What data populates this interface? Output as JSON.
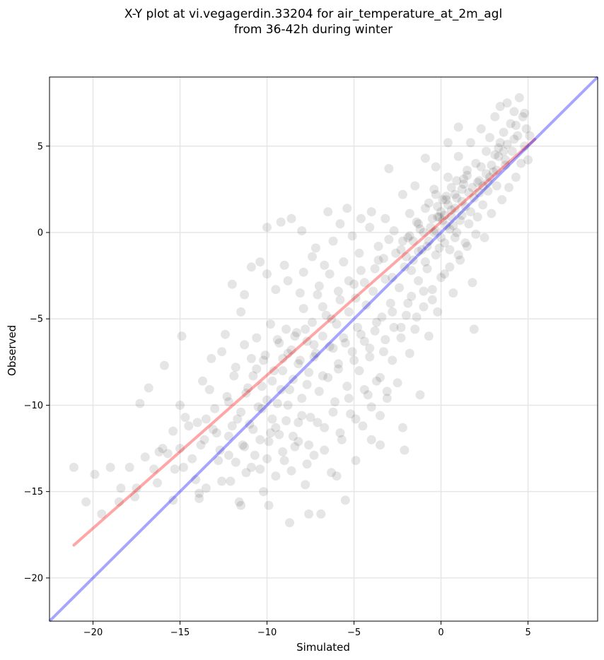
{
  "chart_data": {
    "type": "scatter",
    "title": "X-Y plot at vi.vegagerdin.33204 for air_temperature_at_2m_agl",
    "subtitle": "from 36-42h during winter",
    "xlabel": "Simulated",
    "ylabel": "Observed",
    "xlim": [
      -22.5,
      9.0
    ],
    "ylim": [
      -22.5,
      9.0
    ],
    "xticks": [
      -20,
      -15,
      -10,
      -5,
      0,
      5
    ],
    "yticks": [
      -20,
      -15,
      -10,
      -5,
      0,
      5
    ],
    "xtick_labels": [
      "−20",
      "−15",
      "−10",
      "−5",
      "0",
      "5"
    ],
    "ytick_labels": [
      "−20",
      "−15",
      "−10",
      "−5",
      "0",
      "5"
    ],
    "grid": true,
    "colors": {
      "points": "#000000",
      "regression": "#ff0000",
      "identity": "#0000ff",
      "grid": "#e6e6e6"
    },
    "regression_line": {
      "x": [
        -21.1,
        5.4
      ],
      "y": [
        -18.1,
        5.4
      ]
    },
    "identity_line": {
      "x": [
        -22.5,
        9.0
      ],
      "y": [
        -22.5,
        9.0
      ]
    },
    "points": [
      [
        -21.1,
        -13.6
      ],
      [
        -20.4,
        -15.6
      ],
      [
        -19.9,
        -14.0
      ],
      [
        -19.5,
        -16.3
      ],
      [
        -19.0,
        -13.6
      ],
      [
        -18.5,
        -15.6
      ],
      [
        -18.4,
        -14.8
      ],
      [
        -17.9,
        -13.6
      ],
      [
        -17.6,
        -15.3
      ],
      [
        -17.5,
        -14.8
      ],
      [
        -17.3,
        -9.9
      ],
      [
        -17.0,
        -13.0
      ],
      [
        -16.8,
        -9.0
      ],
      [
        -16.5,
        -13.7
      ],
      [
        -16.3,
        -14.5
      ],
      [
        -16.2,
        -12.7
      ],
      [
        -16.0,
        -12.5
      ],
      [
        -15.9,
        -7.7
      ],
      [
        -15.7,
        -12.8
      ],
      [
        -15.4,
        -15.5
      ],
      [
        -15.4,
        -11.5
      ],
      [
        -15.3,
        -13.7
      ],
      [
        -15.0,
        -12.5
      ],
      [
        -14.8,
        -13.6
      ],
      [
        -14.7,
        -10.7
      ],
      [
        -14.5,
        -11.2
      ],
      [
        -14.3,
        -13.1
      ],
      [
        -14.0,
        -11.0
      ],
      [
        -15.0,
        -10.0
      ],
      [
        -14.9,
        -6.0
      ],
      [
        -14.1,
        -14.3
      ],
      [
        -13.9,
        -15.1
      ],
      [
        -13.8,
        -12.3
      ],
      [
        -13.7,
        -8.6
      ],
      [
        -13.5,
        -14.8
      ],
      [
        -13.5,
        -10.8
      ],
      [
        -13.3,
        -9.1
      ],
      [
        -13.2,
        -7.3
      ],
      [
        -13.0,
        -10.2
      ],
      [
        -12.9,
        -11.6
      ],
      [
        -12.8,
        -13.2
      ],
      [
        -12.6,
        -6.9
      ],
      [
        -12.4,
        -5.9
      ],
      [
        -12.3,
        -9.5
      ],
      [
        -12.2,
        -12.9
      ],
      [
        -12.1,
        -14.4
      ],
      [
        -12.0,
        -11.2
      ],
      [
        -11.9,
        -8.3
      ],
      [
        -11.8,
        -7.8
      ],
      [
        -11.6,
        -15.6
      ],
      [
        -11.5,
        -10.4
      ],
      [
        -11.4,
        -12.3
      ],
      [
        -11.3,
        -6.5
      ],
      [
        -11.2,
        -13.9
      ],
      [
        -11.1,
        -9.0
      ],
      [
        -11.0,
        -11.1
      ],
      [
        -10.9,
        -7.3
      ],
      [
        -10.8,
        -8.3
      ],
      [
        -10.7,
        -12.9
      ],
      [
        -10.6,
        -6.1
      ],
      [
        -10.5,
        -10.1
      ],
      [
        -10.4,
        -13.7
      ],
      [
        -10.3,
        -8.9
      ],
      [
        -10.2,
        -15.0
      ],
      [
        -10.1,
        -7.1
      ],
      [
        -10.0,
        -9.7
      ],
      [
        -9.9,
        -12.1
      ],
      [
        -9.8,
        -5.3
      ],
      [
        -9.7,
        -10.8
      ],
      [
        -9.6,
        -8.0
      ],
      [
        -9.5,
        -14.1
      ],
      [
        -9.4,
        -6.2
      ],
      [
        -9.3,
        -11.7
      ],
      [
        -9.2,
        -9.1
      ],
      [
        -9.1,
        -7.3
      ],
      [
        -9.0,
        -13.2
      ],
      [
        -8.9,
        -5.6
      ],
      [
        -8.8,
        -10.0
      ],
      [
        -8.7,
        -16.8
      ],
      [
        -8.6,
        -6.8
      ],
      [
        -8.5,
        -8.5
      ],
      [
        -8.4,
        -12.4
      ],
      [
        -8.3,
        -5.8
      ],
      [
        -8.2,
        -11.0
      ],
      [
        -8.1,
        -7.4
      ],
      [
        -8.0,
        -9.6
      ],
      [
        -7.9,
        -4.4
      ],
      [
        -7.8,
        -14.6
      ],
      [
        -7.7,
        -6.3
      ],
      [
        -7.6,
        -8.1
      ],
      [
        -7.5,
        -10.7
      ],
      [
        -7.4,
        -5.2
      ],
      [
        -7.3,
        -12.9
      ],
      [
        -7.2,
        -7.0
      ],
      [
        -7.1,
        -3.6
      ],
      [
        -7.0,
        -9.2
      ],
      [
        -6.9,
        -16.3
      ],
      [
        -6.8,
        -6.0
      ],
      [
        -6.7,
        -11.3
      ],
      [
        -6.6,
        -4.8
      ],
      [
        -6.5,
        -8.4
      ],
      [
        -6.4,
        -2.4
      ],
      [
        -6.3,
        -13.9
      ],
      [
        -6.2,
        -6.7
      ],
      [
        -6.1,
        -9.8
      ],
      [
        -6.0,
        -5.3
      ],
      [
        -5.9,
        -7.6
      ],
      [
        -5.8,
        -3.9
      ],
      [
        -5.7,
        -12.0
      ],
      [
        -5.6,
        -6.1
      ],
      [
        -5.5,
        -15.5
      ],
      [
        -5.4,
        -8.9
      ],
      [
        -5.3,
        -4.6
      ],
      [
        -5.2,
        -10.5
      ],
      [
        -5.1,
        -6.9
      ],
      [
        -5.0,
        -3.0
      ],
      [
        -4.9,
        -13.2
      ],
      [
        -4.8,
        -5.5
      ],
      [
        -4.7,
        -8.0
      ],
      [
        -4.6,
        -2.2
      ],
      [
        -4.5,
        -11.2
      ],
      [
        -4.4,
        -6.3
      ],
      [
        -4.3,
        -4.2
      ],
      [
        -4.2,
        -9.4
      ],
      [
        -4.1,
        -7.2
      ],
      [
        -4.0,
        -12.0
      ],
      [
        -3.9,
        -3.4
      ],
      [
        -3.8,
        -5.7
      ],
      [
        -3.7,
        -8.6
      ],
      [
        -3.6,
        -1.6
      ],
      [
        -3.5,
        -10.6
      ],
      [
        -3.4,
        -4.9
      ],
      [
        -3.3,
        -6.9
      ],
      [
        -3.2,
        -2.7
      ],
      [
        -3.1,
        -9.2
      ],
      [
        -3.0,
        -0.4
      ],
      [
        -2.9,
        -4.1
      ],
      [
        -2.8,
        -7.4
      ],
      [
        -2.7,
        -5.5
      ],
      [
        -2.6,
        -1.2
      ],
      [
        -2.5,
        -8.7
      ],
      [
        -2.4,
        -3.2
      ],
      [
        -2.3,
        -6.1
      ],
      [
        -2.2,
        -11.3
      ],
      [
        -2.1,
        -2.0
      ],
      [
        -2.0,
        -4.8
      ],
      [
        -1.9,
        -0.3
      ],
      [
        -1.8,
        -7.0
      ],
      [
        -1.7,
        -3.7
      ],
      [
        -1.6,
        -1.6
      ],
      [
        -1.5,
        -5.6
      ],
      [
        -1.4,
        0.6
      ],
      [
        -1.3,
        -2.8
      ],
      [
        -1.2,
        -9.4
      ],
      [
        -1.1,
        -1.0
      ],
      [
        -1.0,
        -4.3
      ],
      [
        -0.9,
        1.4
      ],
      [
        -0.8,
        -2.1
      ],
      [
        -0.7,
        -6.0
      ],
      [
        -0.6,
        0.3
      ],
      [
        -0.5,
        -3.3
      ],
      [
        -0.4,
        2.5
      ],
      [
        -0.3,
        -1.3
      ],
      [
        -0.2,
        -4.6
      ],
      [
        -0.1,
        0.9
      ],
      [
        0.0,
        -0.3
      ],
      [
        0.1,
        1.9
      ],
      [
        0.2,
        -2.4
      ],
      [
        0.3,
        0.4
      ],
      [
        0.4,
        3.2
      ],
      [
        0.5,
        -1.0
      ],
      [
        0.6,
        1.3
      ],
      [
        0.7,
        -3.5
      ],
      [
        0.8,
        2.2
      ],
      [
        0.9,
        0.0
      ],
      [
        1.0,
        4.4
      ],
      [
        1.1,
        -1.6
      ],
      [
        1.2,
        1.0
      ],
      [
        1.3,
        2.8
      ],
      [
        1.4,
        -0.6
      ],
      [
        1.5,
        3.6
      ],
      [
        1.6,
        0.5
      ],
      [
        1.7,
        5.2
      ],
      [
        1.8,
        -2.9
      ],
      [
        1.9,
        2.0
      ],
      [
        2.0,
        4.0
      ],
      [
        2.1,
        0.9
      ],
      [
        2.2,
        3.0
      ],
      [
        2.3,
        6.0
      ],
      [
        2.4,
        1.6
      ],
      [
        2.5,
        -0.3
      ],
      [
        2.6,
        4.7
      ],
      [
        2.7,
        2.4
      ],
      [
        2.8,
        5.5
      ],
      [
        2.9,
        1.1
      ],
      [
        3.0,
        3.5
      ],
      [
        3.1,
        6.7
      ],
      [
        3.2,
        2.7
      ],
      [
        3.3,
        4.9
      ],
      [
        3.4,
        7.3
      ],
      [
        3.5,
        1.9
      ],
      [
        3.6,
        5.8
      ],
      [
        3.7,
        3.9
      ],
      [
        3.8,
        7.5
      ],
      [
        3.9,
        2.6
      ],
      [
        4.0,
        6.3
      ],
      [
        4.1,
        4.7
      ],
      [
        4.2,
        7.0
      ],
      [
        4.3,
        3.2
      ],
      [
        4.4,
        5.6
      ],
      [
        4.5,
        7.8
      ],
      [
        4.6,
        4.0
      ],
      [
        4.7,
        6.7
      ],
      [
        4.8,
        5.0
      ],
      [
        4.9,
        6.0
      ],
      [
        5.0,
        4.2
      ],
      [
        5.1,
        5.6
      ],
      [
        1.9,
        -5.6
      ],
      [
        -2.1,
        -12.6
      ],
      [
        -3.5,
        -12.3
      ],
      [
        -6.0,
        -14.1
      ],
      [
        -7.6,
        -16.3
      ],
      [
        -9.9,
        -15.8
      ],
      [
        -11.5,
        -15.8
      ],
      [
        -12.6,
        -14.4
      ],
      [
        -13.9,
        -15.4
      ],
      [
        -10.0,
        0.3
      ],
      [
        -9.2,
        0.6
      ],
      [
        -8.6,
        0.8
      ],
      [
        -8.0,
        0.1
      ],
      [
        -7.2,
        -0.9
      ],
      [
        -6.5,
        1.2
      ],
      [
        -5.8,
        0.5
      ],
      [
        -5.4,
        1.4
      ],
      [
        -4.6,
        0.8
      ],
      [
        -4.0,
        1.2
      ],
      [
        -3.0,
        3.7
      ],
      [
        -2.2,
        2.2
      ],
      [
        -1.5,
        2.7
      ],
      [
        -0.9,
        4.3
      ],
      [
        -0.3,
        3.8
      ],
      [
        0.4,
        5.2
      ],
      [
        1.0,
        6.1
      ],
      [
        -11.3,
        -3.6
      ],
      [
        -11.5,
        -4.6
      ],
      [
        -12.0,
        -3.0
      ],
      [
        -10.9,
        -2.0
      ],
      [
        -10.4,
        -1.7
      ],
      [
        -10.0,
        -2.4
      ],
      [
        -9.5,
        -3.3
      ],
      [
        -9.0,
        -1.9
      ],
      [
        -8.8,
        -2.8
      ],
      [
        -8.1,
        -3.5
      ],
      [
        -7.9,
        -2.3
      ],
      [
        -7.4,
        -1.4
      ],
      [
        -7.0,
        -3.1
      ],
      [
        -6.7,
        -1.9
      ],
      [
        -6.2,
        -0.5
      ],
      [
        -5.6,
        -1.7
      ],
      [
        -5.1,
        -0.2
      ],
      [
        -4.7,
        -1.2
      ],
      [
        -4.1,
        0.3
      ],
      [
        -3.6,
        -0.8
      ],
      [
        -3.2,
        0.8
      ],
      [
        -2.7,
        0.1
      ],
      [
        -2.2,
        -0.5
      ],
      [
        -1.8,
        1.1
      ],
      [
        -1.2,
        0.2
      ],
      [
        -0.7,
        1.7
      ],
      [
        -0.2,
        0.9
      ],
      [
        0.3,
        2.1
      ],
      [
        0.8,
        1.4
      ],
      [
        1.3,
        3.1
      ],
      [
        1.8,
        2.6
      ],
      [
        2.3,
        3.8
      ],
      [
        2.8,
        3.2
      ],
      [
        3.3,
        4.4
      ],
      [
        3.8,
        5.1
      ],
      [
        4.3,
        6.2
      ],
      [
        4.8,
        6.9
      ],
      [
        -9.3,
        -6.4
      ],
      [
        -8.8,
        -7.0
      ],
      [
        -8.4,
        -6.0
      ],
      [
        -7.8,
        -5.6
      ],
      [
        -7.3,
        -6.5
      ],
      [
        -6.8,
        -4.3
      ],
      [
        -6.3,
        -5.0
      ],
      [
        -5.9,
        -3.4
      ],
      [
        -5.3,
        -2.8
      ],
      [
        -4.9,
        -3.8
      ],
      [
        -4.4,
        -2.9
      ],
      [
        -3.8,
        -2.1
      ],
      [
        -3.3,
        -1.5
      ],
      [
        -2.8,
        -2.6
      ],
      [
        -2.3,
        -1.0
      ],
      [
        -1.8,
        -0.2
      ],
      [
        -1.3,
        0.5
      ],
      [
        -0.8,
        -0.8
      ],
      [
        -0.3,
        0.1
      ],
      [
        0.2,
        1.0
      ],
      [
        0.7,
        0.4
      ],
      [
        1.2,
        1.8
      ],
      [
        1.7,
        1.2
      ],
      [
        2.2,
        2.3
      ],
      [
        2.7,
        2.9
      ],
      [
        3.2,
        3.6
      ],
      [
        3.7,
        4.2
      ],
      [
        4.2,
        5.4
      ],
      [
        -10.6,
        -7.9
      ],
      [
        -10.2,
        -7.4
      ],
      [
        -9.7,
        -8.6
      ],
      [
        -9.1,
        -8.0
      ],
      [
        -8.7,
        -9.1
      ],
      [
        -8.2,
        -7.6
      ],
      [
        -7.7,
        -8.8
      ],
      [
        -7.3,
        -7.2
      ],
      [
        -6.8,
        -8.3
      ],
      [
        -6.4,
        -6.6
      ],
      [
        -5.9,
        -7.9
      ],
      [
        -5.5,
        -6.4
      ],
      [
        -5.0,
        -7.4
      ],
      [
        -4.6,
        -5.9
      ],
      [
        -4.1,
        -6.7
      ],
      [
        -3.7,
        -5.2
      ],
      [
        -3.2,
        -6.2
      ],
      [
        -2.8,
        -4.6
      ],
      [
        -2.3,
        -5.5
      ],
      [
        -1.9,
        -4.1
      ],
      [
        -1.4,
        -4.9
      ],
      [
        -1.0,
        -3.4
      ],
      [
        -0.5,
        -3.9
      ],
      [
        0.0,
        -2.6
      ],
      [
        0.5,
        -2.0
      ],
      [
        1.0,
        -1.3
      ],
      [
        1.5,
        -0.8
      ],
      [
        2.0,
        -0.1
      ],
      [
        -12.2,
        -9.8
      ],
      [
        -11.7,
        -10.8
      ],
      [
        -11.2,
        -9.3
      ],
      [
        -10.8,
        -11.4
      ],
      [
        -10.3,
        -10.2
      ],
      [
        -9.8,
        -11.6
      ],
      [
        -9.4,
        -9.9
      ],
      [
        -8.9,
        -10.9
      ],
      [
        -8.5,
        -11.8
      ],
      [
        -8.0,
        -10.6
      ],
      [
        -7.6,
        -12.3
      ],
      [
        -7.1,
        -11.0
      ],
      [
        -6.7,
        -12.6
      ],
      [
        -6.2,
        -10.4
      ],
      [
        -5.8,
        -11.6
      ],
      [
        -5.3,
        -9.6
      ],
      [
        -4.9,
        -10.8
      ],
      [
        -4.4,
        -9.1
      ],
      [
        -4.0,
        -10.1
      ],
      [
        -3.5,
        -8.4
      ],
      [
        -3.1,
        -9.6
      ],
      [
        -13.6,
        -12.0
      ],
      [
        -13.1,
        -11.4
      ],
      [
        -12.7,
        -12.6
      ],
      [
        -12.2,
        -11.8
      ],
      [
        -11.8,
        -13.3
      ],
      [
        -11.3,
        -12.4
      ],
      [
        -10.9,
        -13.6
      ],
      [
        -10.4,
        -12.0
      ],
      [
        -10.0,
        -13.1
      ],
      [
        -9.5,
        -11.3
      ],
      [
        -9.1,
        -12.7
      ],
      [
        -8.6,
        -13.8
      ],
      [
        -8.2,
        -12.1
      ],
      [
        -7.7,
        -13.4
      ],
      [
        -0.5,
        0.8
      ],
      [
        -0.2,
        1.5
      ],
      [
        0.1,
        0.7
      ],
      [
        0.4,
        1.6
      ],
      [
        0.6,
        0.9
      ],
      [
        0.9,
        2.0
      ],
      [
        -0.4,
        0.0
      ],
      [
        0.2,
        -0.6
      ],
      [
        -0.1,
        -0.9
      ],
      [
        0.5,
        0.2
      ],
      [
        0.8,
        -0.3
      ],
      [
        1.1,
        0.7
      ],
      [
        1.4,
        1.5
      ],
      [
        1.6,
        2.3
      ],
      [
        -1.0,
        0.0
      ],
      [
        -0.7,
        -0.5
      ],
      [
        -1.3,
        -1.1
      ],
      [
        -0.9,
        -1.7
      ],
      [
        -1.6,
        -0.5
      ],
      [
        -2.0,
        -1.4
      ],
      [
        -1.7,
        -2.2
      ],
      [
        2.4,
        2.7
      ],
      [
        2.6,
        3.4
      ],
      [
        2.1,
        2.9
      ],
      [
        2.9,
        3.9
      ],
      [
        3.1,
        4.5
      ],
      [
        3.4,
        5.2
      ],
      [
        3.6,
        4.7
      ],
      [
        0.0,
        1.2
      ],
      [
        0.3,
        1.9
      ],
      [
        0.6,
        2.6
      ],
      [
        -0.3,
        2.2
      ],
      [
        0.9,
        3.0
      ],
      [
        1.2,
        2.5
      ],
      [
        1.5,
        3.3
      ]
    ]
  }
}
